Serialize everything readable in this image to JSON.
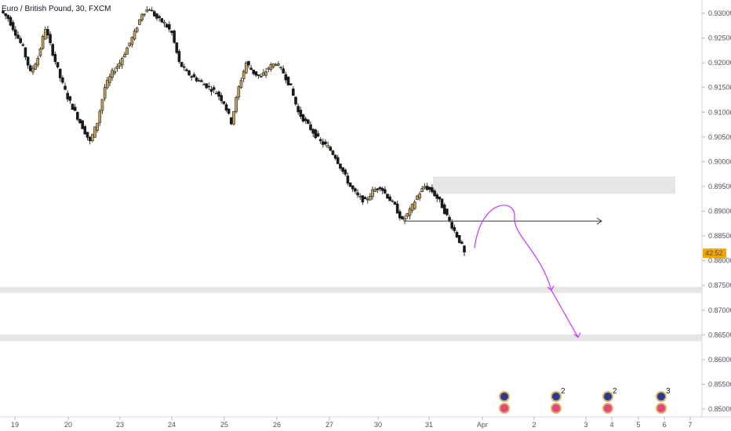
{
  "header": {
    "title": "Euro / British Pound, 30, FXCM"
  },
  "countdown": {
    "label": "42:52",
    "bg": "#f7a600"
  },
  "colors": {
    "up": "#ffffff",
    "down": "#1a1a1a",
    "wick": "#333333",
    "zone": "#e6e6e6",
    "arrow": "#cc33ff",
    "line": "#333333"
  },
  "chart_data": {
    "type": "candlestick",
    "title": "Euro / British Pound, 30, FXCM",
    "y_ticks": [
      "0.93000",
      "0.92500",
      "0.92000",
      "0.91500",
      "0.91000",
      "0.90500",
      "0.90000",
      "0.89500",
      "0.89000",
      "0.88500",
      "0.88000",
      "0.87500",
      "0.87000",
      "0.86500",
      "0.86000",
      "0.85500",
      "0.85000"
    ],
    "y_values": [
      0.93,
      0.925,
      0.92,
      0.915,
      0.91,
      0.905,
      0.9,
      0.895,
      0.89,
      0.885,
      0.88,
      0.875,
      0.87,
      0.865,
      0.86,
      0.855,
      0.85
    ],
    "x_ticks": [
      "19",
      "20",
      "23",
      "24",
      "25",
      "26",
      "27",
      "30",
      "31",
      "Apr",
      "2",
      "3",
      "4",
      "5",
      "6",
      "7"
    ],
    "ylim": [
      0.8485,
      0.9325
    ],
    "close_path": [
      0.929,
      0.926,
      0.923,
      0.918,
      0.921,
      0.927,
      0.922,
      0.917,
      0.913,
      0.91,
      0.907,
      0.904,
      0.908,
      0.915,
      0.918,
      0.92,
      0.923,
      0.926,
      0.93,
      0.931,
      0.929,
      0.928,
      0.926,
      0.92,
      0.918,
      0.917,
      0.916,
      0.915,
      0.914,
      0.912,
      0.908,
      0.915,
      0.92,
      0.918,
      0.917,
      0.919,
      0.92,
      0.918,
      0.915,
      0.91,
      0.908,
      0.906,
      0.904,
      0.903,
      0.901,
      0.898,
      0.895,
      0.893,
      0.892,
      0.894,
      0.895,
      0.893,
      0.891,
      0.888,
      0.89,
      0.893,
      0.895,
      0.894,
      0.892,
      0.889,
      0.886,
      0.883,
      0.8815
    ],
    "resistance_zone": [
      0.8935,
      0.897
    ],
    "support_zones": [
      [
        0.8735,
        0.8747
      ],
      [
        0.8637,
        0.8651
      ]
    ],
    "horizontal_line": 0.888,
    "projection": [
      0.8825,
      0.8895,
      0.874,
      0.8645
    ],
    "events": [
      {
        "x": "Apr",
        "count": "",
        "type": "flag"
      },
      {
        "x": "2",
        "count": "2",
        "type": "flag"
      },
      {
        "x": "3",
        "count": "2",
        "type": "flag"
      },
      {
        "x": "5",
        "count": "3",
        "type": "flag"
      }
    ]
  }
}
